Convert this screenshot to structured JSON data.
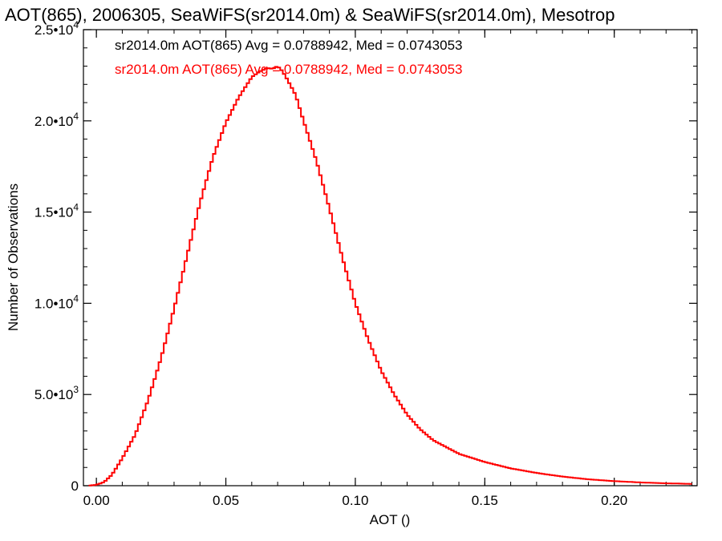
{
  "chart_data": {
    "type": "line",
    "title": "AOT(865), 2006305, SeaWiFS(sr2014.0m) & SeaWiFS(sr2014.0m), Mesotrop",
    "xlabel": "AOT ()",
    "ylabel": "Number of Observations",
    "xlim": [
      -0.005,
      0.232
    ],
    "ylim": [
      0,
      25000
    ],
    "grid": false,
    "x_ticks": [
      {
        "value": 0.0,
        "label": "0.00"
      },
      {
        "value": 0.05,
        "label": "0.05"
      },
      {
        "value": 0.1,
        "label": "0.10"
      },
      {
        "value": 0.15,
        "label": "0.15"
      },
      {
        "value": 0.2,
        "label": "0.20"
      }
    ],
    "y_ticks": [
      {
        "value": 0,
        "mant": "0",
        "exp": ""
      },
      {
        "value": 5000,
        "mant": "5.0•10",
        "exp": "3"
      },
      {
        "value": 10000,
        "mant": "1.0•10",
        "exp": "4"
      },
      {
        "value": 15000,
        "mant": "1.5•10",
        "exp": "4"
      },
      {
        "value": 20000,
        "mant": "2.0•10",
        "exp": "4"
      },
      {
        "value": 25000,
        "mant": "2.5•10",
        "exp": "4"
      }
    ],
    "annotations": [
      {
        "text": "sr2014.0m AOT(865) Avg = 0.0788942, Med = 0.0743053",
        "color": "#000000"
      },
      {
        "text": "sr2014.0m AOT(865) Avg = 0.0788942, Med = 0.0743053",
        "color": "#ff0000"
      }
    ],
    "series": [
      {
        "color": "#ff0000",
        "x": [
          -0.003,
          0.0,
          0.003,
          0.006,
          0.01,
          0.015,
          0.02,
          0.025,
          0.03,
          0.035,
          0.04,
          0.045,
          0.05,
          0.055,
          0.06,
          0.063,
          0.066,
          0.068,
          0.07,
          0.072,
          0.074,
          0.077,
          0.08,
          0.085,
          0.09,
          0.095,
          0.1,
          0.105,
          0.11,
          0.115,
          0.12,
          0.125,
          0.13,
          0.14,
          0.15,
          0.16,
          0.17,
          0.18,
          0.19,
          0.2,
          0.21,
          0.22,
          0.23
        ],
        "y": [
          0,
          50,
          200,
          600,
          1500,
          2800,
          4700,
          7000,
          9700,
          12600,
          15500,
          18000,
          19900,
          21300,
          22400,
          22700,
          22900,
          22850,
          23000,
          22700,
          22200,
          21400,
          20000,
          17800,
          15200,
          12500,
          10000,
          8000,
          6300,
          5000,
          3900,
          3100,
          2500,
          1750,
          1300,
          950,
          700,
          500,
          350,
          250,
          180,
          130,
          100
        ]
      }
    ]
  }
}
